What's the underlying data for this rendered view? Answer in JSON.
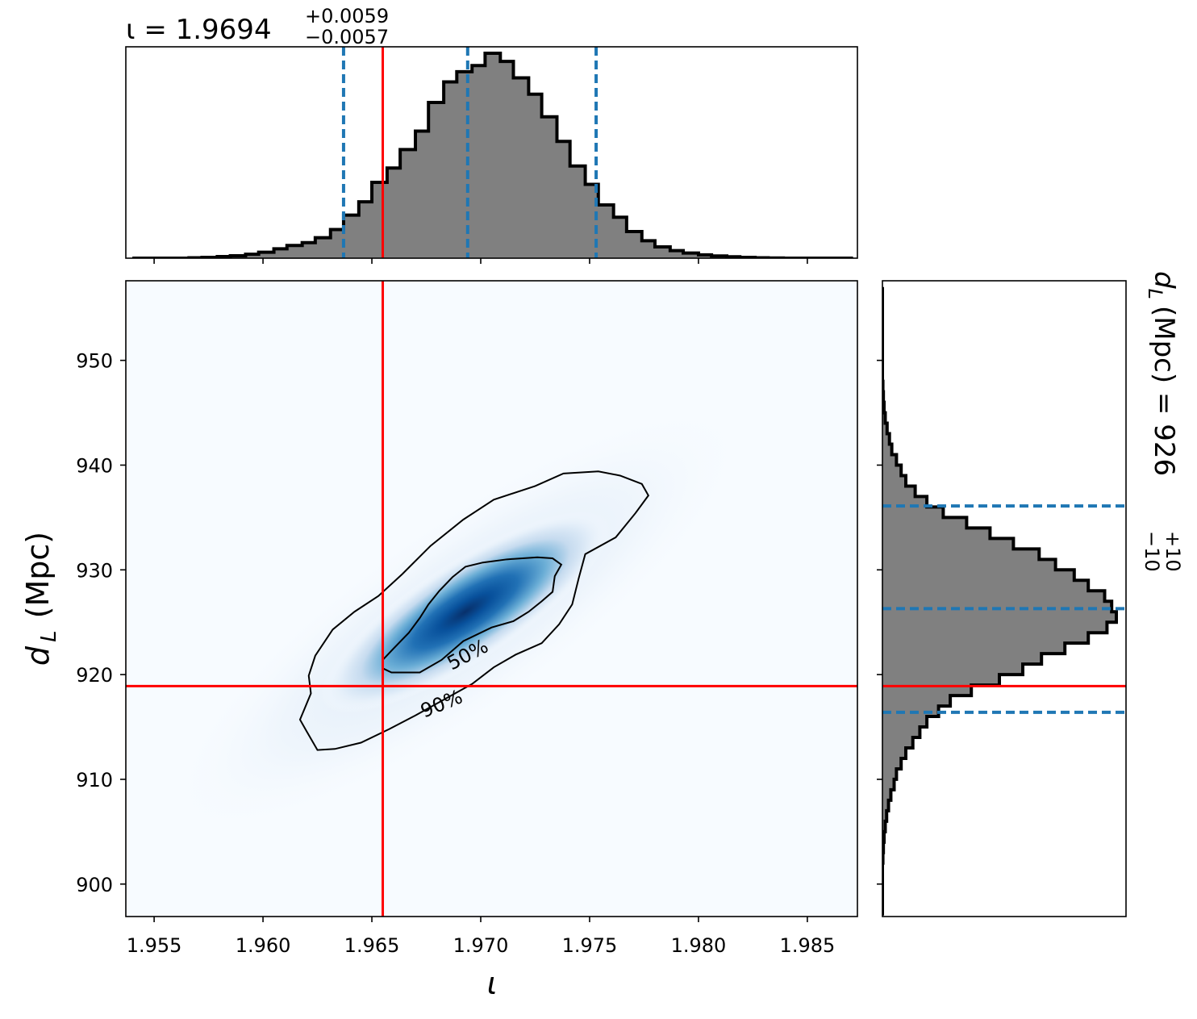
{
  "chart_data": [
    {
      "type": "histogram",
      "panel": "top-marginal",
      "title": {
        "symbol": "ι",
        "prefix": "ι = 1.9694",
        "value": "1.9694",
        "upper": "+0.0059",
        "lower": "−0.0057"
      },
      "xlim": [
        1.9537,
        1.9873
      ],
      "bins": [
        1.954,
        1.9546,
        1.9553,
        1.9559,
        1.9566,
        1.9572,
        1.9579,
        1.9585,
        1.9592,
        1.9598,
        1.9605,
        1.9611,
        1.9618,
        1.9624,
        1.9631,
        1.9637,
        1.9644,
        1.965,
        1.9657,
        1.9663,
        1.967,
        1.9676,
        1.9683,
        1.9689,
        1.9696,
        1.9702,
        1.9709,
        1.9715,
        1.9722,
        1.9728,
        1.9735,
        1.9741,
        1.9748,
        1.9754,
        1.9761,
        1.9767,
        1.9774,
        1.978,
        1.9787,
        1.9793,
        1.98,
        1.9806,
        1.9813,
        1.9819,
        1.9826,
        1.9832,
        1.9839,
        1.9845,
        1.9852,
        1.9858,
        1.9865,
        1.9871
      ],
      "counts": [
        0,
        0,
        0,
        0,
        0.002,
        0.004,
        0.008,
        0.012,
        0.019,
        0.029,
        0.046,
        0.062,
        0.076,
        0.1,
        0.14,
        0.21,
        0.275,
        0.37,
        0.44,
        0.53,
        0.62,
        0.76,
        0.86,
        0.91,
        0.94,
        1.0,
        0.96,
        0.88,
        0.8,
        0.69,
        0.57,
        0.45,
        0.36,
        0.26,
        0.2,
        0.13,
        0.085,
        0.055,
        0.037,
        0.025,
        0.016,
        0.011,
        0.007,
        0.004,
        0.002,
        0.001,
        0,
        0,
        0,
        0,
        0
      ],
      "quantiles": [
        1.9637,
        1.9694,
        1.9753
      ],
      "truth": 1.9655,
      "xticks": [
        1.955,
        1.96,
        1.965,
        1.97,
        1.975,
        1.98,
        1.985
      ],
      "fill_color": "#808080",
      "edge_color": "#000000",
      "quantile_color": "#1f77b4",
      "truth_color": "#ff0000"
    },
    {
      "type": "heatmap",
      "panel": "joint",
      "xlabel": "ι",
      "ylabel_symbol": "d",
      "ylabel_sub": "L",
      "ylabel_unit": "(Mpc)",
      "xlim": [
        1.9537,
        1.9873
      ],
      "ylim": [
        896.9,
        957.6
      ],
      "xticks": [
        1.955,
        1.96,
        1.965,
        1.97,
        1.975,
        1.98,
        1.985
      ],
      "xtick_labels": [
        "1.955",
        "1.960",
        "1.965",
        "1.970",
        "1.975",
        "1.980",
        "1.985"
      ],
      "yticks": [
        900,
        910,
        920,
        930,
        940,
        950
      ],
      "ytick_labels": [
        "900",
        "910",
        "920",
        "930",
        "940",
        "950"
      ],
      "truth": {
        "x": 1.9655,
        "y": 918.9
      },
      "density_peak": {
        "x": 1.9693,
        "y": 926.0
      },
      "colormap": "Blues",
      "contours": [
        {
          "label": "50%",
          "label_position": [
            1.9694,
            921.9
          ],
          "label_angle_deg": -28,
          "points": [
            [
              1.9655,
              920.6
            ],
            [
              1.9655,
              921.4
            ],
            [
              1.966,
              922.5
            ],
            [
              1.9667,
              924.0
            ],
            [
              1.9672,
              925.4
            ],
            [
              1.9676,
              926.7
            ],
            [
              1.9681,
              928.0
            ],
            [
              1.9687,
              929.3
            ],
            [
              1.9693,
              930.3
            ],
            [
              1.9701,
              930.7
            ],
            [
              1.9712,
              931.0
            ],
            [
              1.9726,
              931.2
            ],
            [
              1.9733,
              931.1
            ],
            [
              1.9737,
              930.5
            ],
            [
              1.9734,
              929.4
            ],
            [
              1.9733,
              927.9
            ],
            [
              1.9728,
              927.0
            ],
            [
              1.9722,
              926.0
            ],
            [
              1.9715,
              925.1
            ],
            [
              1.9705,
              924.5
            ],
            [
              1.9692,
              923.2
            ],
            [
              1.9682,
              921.4
            ],
            [
              1.9672,
              920.2
            ],
            [
              1.9659,
              920.2
            ],
            [
              1.9655,
              920.6
            ]
          ]
        },
        {
          "label": "90%",
          "label_position": [
            1.9682,
            917.2
          ],
          "label_angle_deg": -22,
          "points": [
            [
              1.962,
              914.6
            ],
            [
              1.9625,
              912.8
            ],
            [
              1.9633,
              912.9
            ],
            [
              1.9645,
              913.5
            ],
            [
              1.9658,
              914.8
            ],
            [
              1.967,
              916.1
            ],
            [
              1.9683,
              917.6
            ],
            [
              1.9696,
              919.1
            ],
            [
              1.9706,
              920.7
            ],
            [
              1.9716,
              921.9
            ],
            [
              1.9728,
              923.0
            ],
            [
              1.9736,
              924.8
            ],
            [
              1.9742,
              926.7
            ],
            [
              1.9745,
              929.2
            ],
            [
              1.9748,
              931.5
            ],
            [
              1.9762,
              933.1
            ],
            [
              1.9771,
              935.4
            ],
            [
              1.9777,
              937.1
            ],
            [
              1.9774,
              938.2
            ],
            [
              1.9764,
              939.0
            ],
            [
              1.9754,
              939.4
            ],
            [
              1.9738,
              939.2
            ],
            [
              1.9725,
              938.0
            ],
            [
              1.9706,
              936.7
            ],
            [
              1.9692,
              934.8
            ],
            [
              1.9677,
              932.3
            ],
            [
              1.9664,
              929.6
            ],
            [
              1.9653,
              927.5
            ],
            [
              1.9642,
              926.0
            ],
            [
              1.9632,
              924.3
            ],
            [
              1.9624,
              921.8
            ],
            [
              1.9621,
              919.9
            ],
            [
              1.9622,
              918.2
            ],
            [
              1.9619,
              916.7
            ],
            [
              1.9617,
              915.7
            ],
            [
              1.962,
              914.6
            ]
          ]
        }
      ],
      "truth_color": "#ff0000"
    },
    {
      "type": "histogram",
      "panel": "right-marginal",
      "orientation": "horizontal",
      "title": {
        "prefix": "d",
        "sub": "L",
        "unit": "(Mpc) = 926",
        "value": "926",
        "upper": "+10",
        "lower": "−10"
      },
      "ylim": [
        896.9,
        957.6
      ],
      "bins": [
        897.0,
        898.0,
        899.0,
        900.0,
        901.0,
        902.0,
        903.0,
        904.0,
        905.0,
        906.0,
        907.0,
        908.0,
        909.0,
        910.0,
        911.0,
        912.0,
        913.0,
        914.0,
        915.0,
        916.0,
        917.0,
        918.0,
        919.0,
        920.0,
        921.0,
        922.0,
        923.0,
        924.0,
        925.0,
        926.0,
        927.0,
        928.0,
        929.0,
        930.0,
        931.0,
        932.0,
        933.0,
        934.0,
        935.0,
        936.0,
        937.0,
        938.0,
        939.0,
        940.0,
        941.0,
        942.0,
        943.0,
        944.0,
        945.0,
        946.0,
        947.0,
        948.0,
        949.0,
        950.0,
        951.0,
        952.0,
        953.0,
        954.0,
        955.0,
        956.0,
        957.0
      ],
      "counts": [
        0,
        0,
        0,
        0,
        0,
        0.002,
        0.004,
        0.007,
        0.012,
        0.018,
        0.026,
        0.036,
        0.05,
        0.06,
        0.08,
        0.1,
        0.13,
        0.16,
        0.19,
        0.24,
        0.29,
        0.38,
        0.5,
        0.6,
        0.68,
        0.78,
        0.88,
        0.96,
        1.0,
        0.98,
        0.95,
        0.88,
        0.82,
        0.74,
        0.67,
        0.56,
        0.46,
        0.36,
        0.26,
        0.19,
        0.14,
        0.1,
        0.08,
        0.06,
        0.04,
        0.03,
        0.02,
        0.012,
        0.007,
        0.004,
        0.002,
        0,
        0,
        0,
        0,
        0,
        0,
        0,
        0,
        0
      ],
      "quantiles": [
        916.4,
        926.3,
        936.1
      ],
      "truth": 918.9,
      "yticks": [
        900,
        910,
        920,
        930,
        940,
        950
      ],
      "fill_color": "#808080",
      "edge_color": "#000000",
      "quantile_color": "#1f77b4",
      "truth_color": "#ff0000"
    }
  ]
}
